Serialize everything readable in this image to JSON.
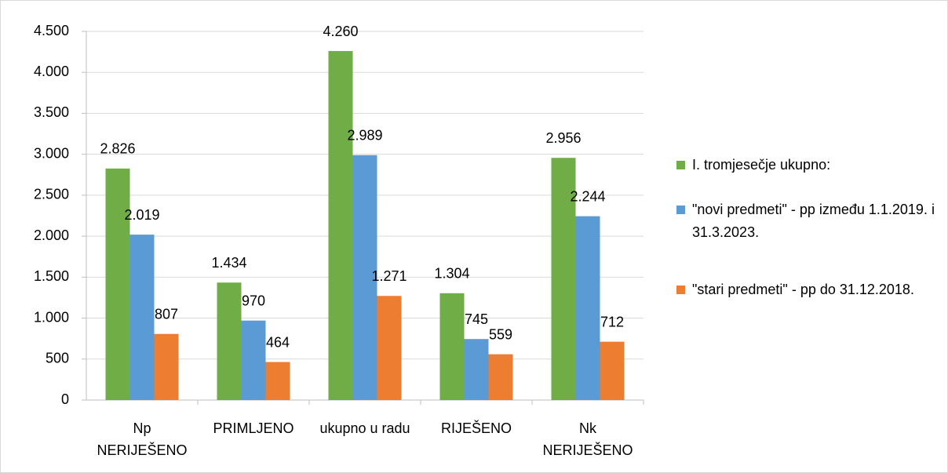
{
  "chart_data": {
    "type": "bar",
    "categories": [
      "Np NERIJEŠENO",
      "PRIMLJENO",
      "ukupno u radu",
      "RIJEŠENO",
      "Nk NERIJEŠENO"
    ],
    "series": [
      {
        "name": "I. tromjesečje ukupno:",
        "color": "#70ad47",
        "values": [
          2826,
          1434,
          4260,
          1304,
          2956
        ],
        "value_labels": [
          "2.826",
          "1.434",
          "4.260",
          "1.304",
          "2.956"
        ]
      },
      {
        "name": "\"novi predmeti\" - pp između 1.1.2019. i 31.3.2023.",
        "color": "#5b9bd5",
        "values": [
          2019,
          970,
          2989,
          745,
          2244
        ],
        "value_labels": [
          "2.019",
          "970",
          "2.989",
          "745",
          "2.244"
        ]
      },
      {
        "name": "\"stari predmeti\" - pp do 31.12.2018.",
        "color": "#ed7d31",
        "values": [
          807,
          464,
          1271,
          559,
          712
        ],
        "value_labels": [
          "807",
          "464",
          "1.271",
          "559",
          "712"
        ]
      }
    ],
    "ylim": [
      0,
      4500
    ],
    "yticks": [
      0,
      500,
      {
        "value": 1000,
        "label": "1.000"
      },
      {
        "value": 1500,
        "label": "1.500"
      },
      {
        "value": 2000,
        "label": "2.000"
      },
      {
        "value": 2500,
        "label": "2.500"
      },
      {
        "value": 3000,
        "label": "3.000"
      },
      {
        "value": 3500,
        "label": "3.500"
      },
      {
        "value": 4000,
        "label": "4.000"
      },
      {
        "value": 4500,
        "label": "4.500"
      }
    ],
    "grid": true,
    "legend": "right"
  }
}
